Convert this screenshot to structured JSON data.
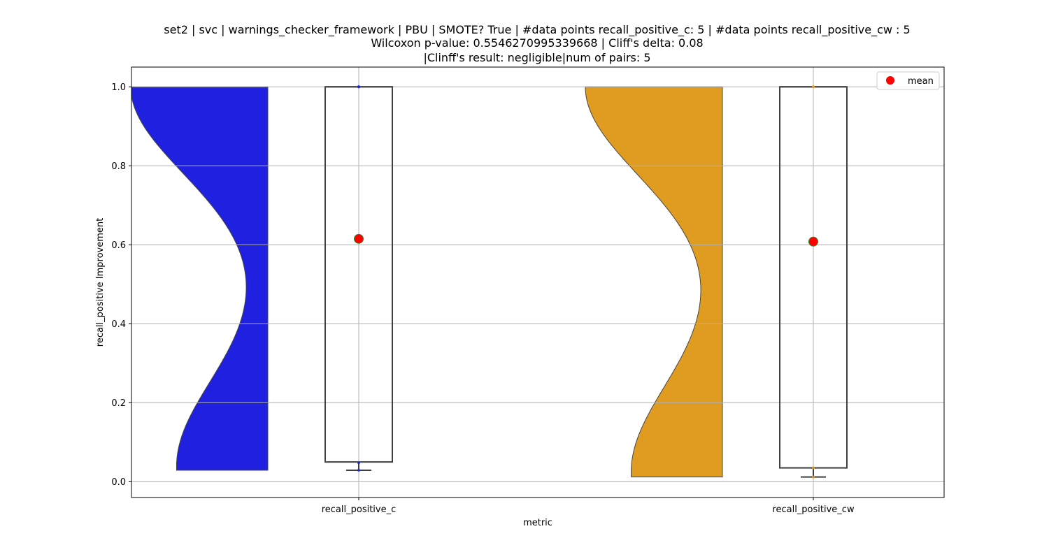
{
  "chart_data": {
    "type": "violin",
    "title_lines": [
      "set2 | svc | warnings_checker_framework | PBU | SMOTE? True | #data points recall_positive_c: 5 | #data points recall_positive_cw : 5",
      "Wilcoxon p-value: 0.5546270995339668 | Cliff's delta: 0.08",
      "|Clinff's result: negligible|num of pairs: 5"
    ],
    "xlabel": "metric",
    "ylabel": "recall_positive Improvement",
    "ylim": [
      -0.04,
      1.05
    ],
    "yticks": [
      0.0,
      0.2,
      0.4,
      0.6,
      0.8,
      1.0
    ],
    "ytick_labels": [
      "0.0",
      "0.2",
      "0.4",
      "0.6",
      "0.8",
      "1.0"
    ],
    "grid": true,
    "legend": {
      "position": "upper right",
      "entries": [
        {
          "label": "mean",
          "color": "#ff0000"
        }
      ]
    },
    "categories": [
      "recall_positive_c",
      "recall_positive_cw"
    ],
    "series": [
      {
        "name": "recall_positive_c",
        "violin_color": "#2020e0",
        "violin_range": [
          0.029,
          1.0
        ],
        "box": {
          "q1": 0.05,
          "median": 1.0,
          "q3": 1.0,
          "whisker_low": 0.029,
          "whisker_high": 1.0
        },
        "points": [
          0.029,
          0.048,
          1.0,
          1.0,
          1.0
        ],
        "mean": 0.615
      },
      {
        "name": "recall_positive_cw",
        "violin_color": "#e09c20",
        "violin_range": [
          0.012,
          1.0
        ],
        "box": {
          "q1": 0.035,
          "median": 1.0,
          "q3": 1.0,
          "whisker_low": 0.012,
          "whisker_high": 1.0
        },
        "points": [
          0.012,
          0.035,
          1.0,
          1.0,
          1.0
        ],
        "mean": 0.608
      }
    ]
  }
}
